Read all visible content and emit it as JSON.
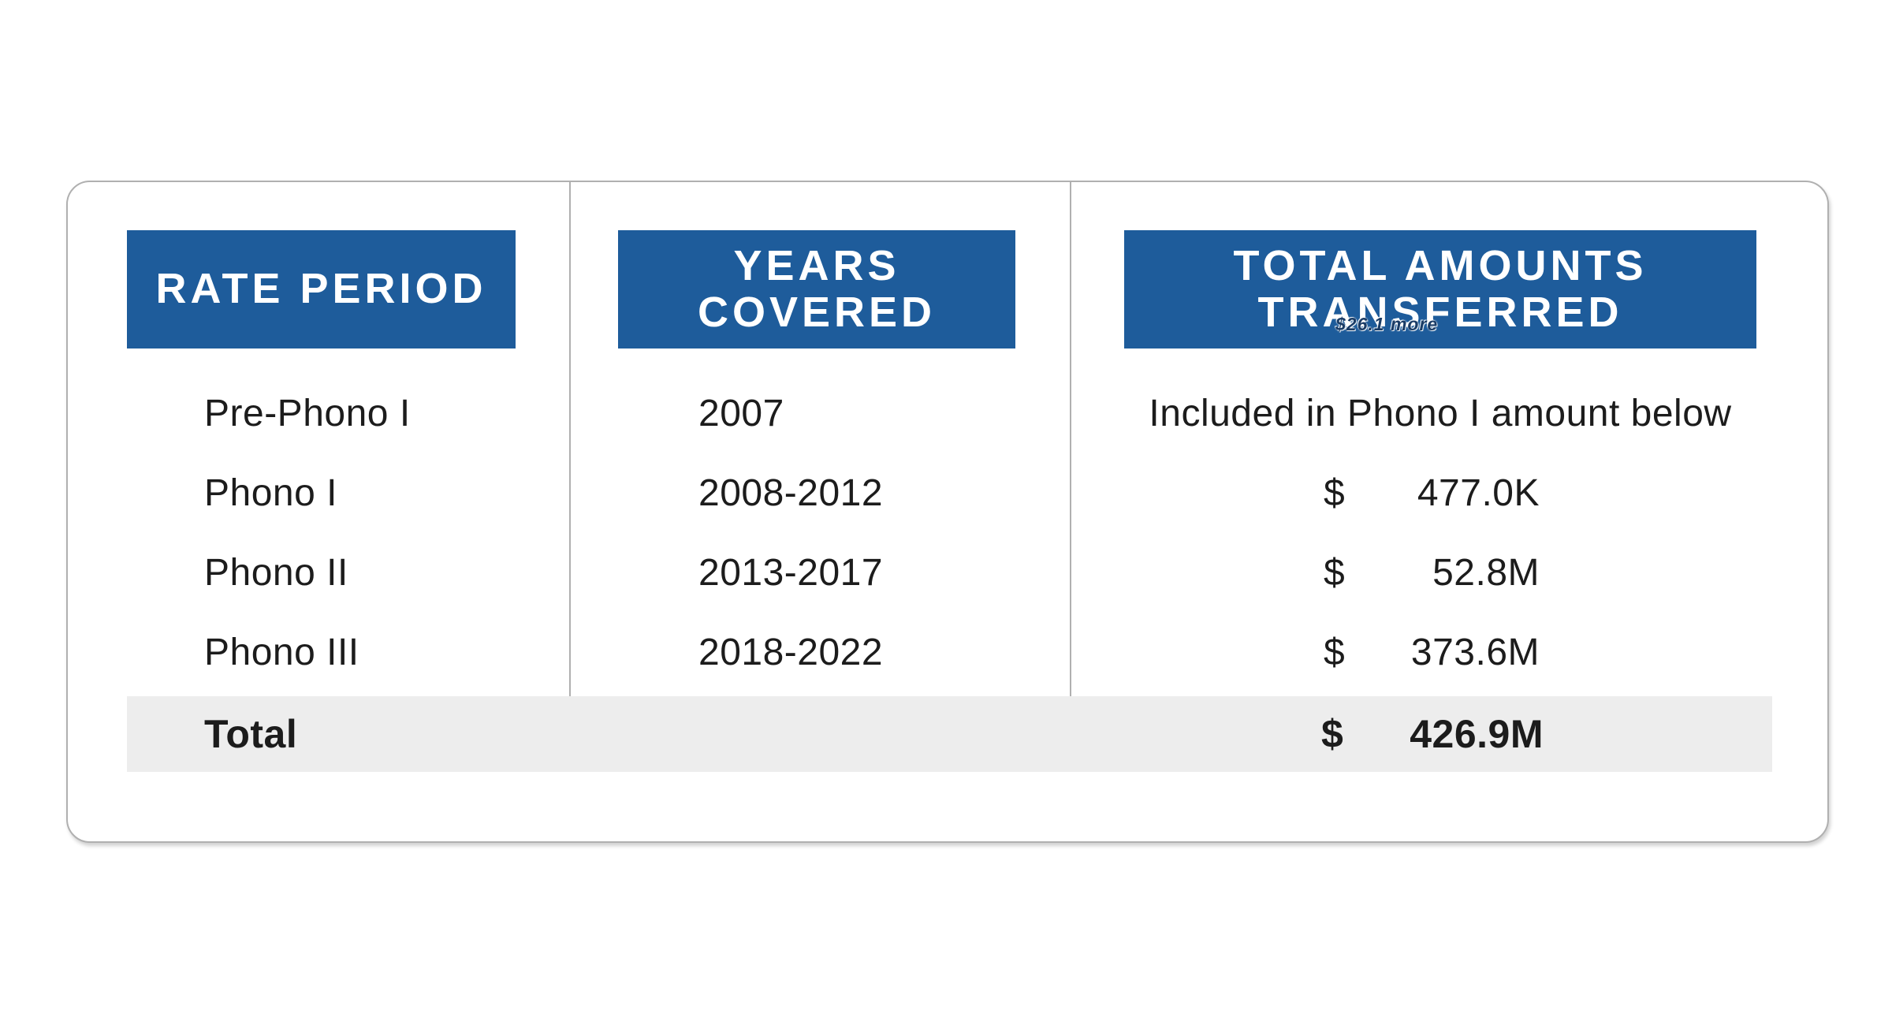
{
  "chart_data": {
    "type": "table",
    "columns": [
      "RATE PERIOD",
      "YEARS COVERED",
      "TOTAL AMOUNTS TRANSFERRED"
    ],
    "rows": [
      [
        "Pre-Phono I",
        "2007",
        "Included in Phono I amount below"
      ],
      [
        "Phono I",
        "2008-2012",
        "$477.0K"
      ],
      [
        "Phono II",
        "2013-2017",
        "$52.8M"
      ],
      [
        "Phono III",
        "2018-2022",
        "$373.6M"
      ],
      [
        "Total",
        "",
        "$426.9M"
      ]
    ],
    "layout_hints": {
      "header_style": "blue chips",
      "total_row_background": "light gray band",
      "column_dividers": "thin gray vertical lines"
    }
  },
  "card": {
    "headers": [
      {
        "label": "RATE PERIOD"
      },
      {
        "label": "YEARS\nCOVERED"
      },
      {
        "label": "TOTAL AMOUNTS\nTRANSFERRED"
      }
    ],
    "rows": [
      {
        "period": "Pre-Phono I",
        "years": "2007",
        "note": "Included in Phono I amount below"
      },
      {
        "period": "Phono I",
        "years": "2008-2012",
        "currency": "$",
        "amount": "477.0K"
      },
      {
        "period": "Phono II",
        "years": "2013-2017",
        "currency": "$",
        "amount": "52.8M"
      },
      {
        "period": "Phono III",
        "years": "2018-2022",
        "currency": "$",
        "amount": "373.6M"
      }
    ],
    "total": {
      "label": "Total",
      "currency": "$",
      "amount": "426.9M"
    }
  },
  "overlay": {
    "watermark": "$26.1 more"
  },
  "colors": {
    "header_blue": "#1E5C9B",
    "total_band_gray": "#EDEDED",
    "border_gray": "#B0B0B0",
    "text_black": "#1C1C1C",
    "watermark_navy": "#1A3C66"
  }
}
